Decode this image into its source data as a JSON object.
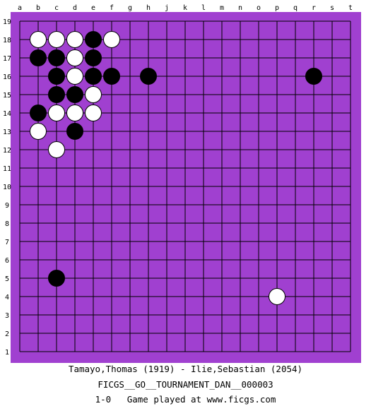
{
  "board": {
    "size": 19,
    "board_color": "#a040d0",
    "line_color": "#000000",
    "columns": [
      "a",
      "b",
      "c",
      "d",
      "e",
      "f",
      "g",
      "h",
      "j",
      "k",
      "l",
      "m",
      "n",
      "o",
      "p",
      "q",
      "r",
      "s",
      "t"
    ],
    "rows": [
      "19",
      "18",
      "17",
      "16",
      "15",
      "14",
      "13",
      "12",
      "11",
      "10",
      "9",
      "8",
      "7",
      "6",
      "5",
      "4",
      "3",
      "2",
      "1"
    ],
    "stones": [
      {
        "color": "white",
        "point": "b18"
      },
      {
        "color": "white",
        "point": "c18"
      },
      {
        "color": "white",
        "point": "d18"
      },
      {
        "color": "black",
        "point": "e18"
      },
      {
        "color": "white",
        "point": "f18"
      },
      {
        "color": "black",
        "point": "b17"
      },
      {
        "color": "black",
        "point": "c17"
      },
      {
        "color": "white",
        "point": "d17"
      },
      {
        "color": "black",
        "point": "e17"
      },
      {
        "color": "black",
        "point": "c16"
      },
      {
        "color": "white",
        "point": "d16"
      },
      {
        "color": "black",
        "point": "e16"
      },
      {
        "color": "black",
        "point": "f16"
      },
      {
        "color": "black",
        "point": "h16"
      },
      {
        "color": "black",
        "point": "r16"
      },
      {
        "color": "black",
        "point": "c15"
      },
      {
        "color": "black",
        "point": "d15"
      },
      {
        "color": "white",
        "point": "e15"
      },
      {
        "color": "black",
        "point": "b14"
      },
      {
        "color": "white",
        "point": "c14"
      },
      {
        "color": "white",
        "point": "d14"
      },
      {
        "color": "white",
        "point": "e14"
      },
      {
        "color": "white",
        "point": "b13"
      },
      {
        "color": "black",
        "point": "d13"
      },
      {
        "color": "white",
        "point": "c12"
      },
      {
        "color": "black",
        "point": "c5"
      },
      {
        "color": "white",
        "point": "p4"
      }
    ]
  },
  "caption": {
    "players": "Tamayo,Thomas (1919) - Ilie,Sebastian (2054)",
    "event": "FICGS__GO__TOURNAMENT_DAN__000003",
    "result_line": "1-0   Game played at www.ficgs.com"
  }
}
